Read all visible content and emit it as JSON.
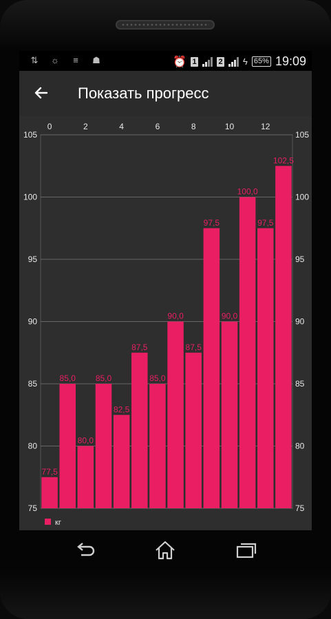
{
  "status_bar": {
    "icons_left": [
      "usb-icon",
      "bulb-icon",
      "cell-data-icon",
      "android-icon"
    ],
    "alarm_icon": "alarm-clock-icon",
    "sim1_label": "1",
    "sim2_label": "2",
    "battery_label": "65%",
    "time": "19:09"
  },
  "app_bar": {
    "back_icon": "arrow-left-icon",
    "title": "Показать прогресс"
  },
  "chart_data": {
    "type": "bar",
    "categories": [
      "0",
      "1",
      "2",
      "3",
      "4",
      "5",
      "6",
      "7",
      "8",
      "9",
      "10",
      "11",
      "12",
      "13"
    ],
    "x_ticks": [
      "0",
      "2",
      "4",
      "6",
      "8",
      "10",
      "12"
    ],
    "values": [
      77.5,
      85.0,
      80.0,
      85.0,
      82.5,
      87.5,
      85.0,
      90.0,
      87.5,
      97.5,
      90.0,
      100.0,
      97.5,
      102.5
    ],
    "value_labels": [
      "77,5",
      "85,0",
      "80,0",
      "85,0",
      "82,5",
      "87,5",
      "85,0",
      "90,0",
      "87,5",
      "97,5",
      "90,0",
      "100,0",
      "97,5",
      "102,5"
    ],
    "y_ticks": [
      "75",
      "80",
      "85",
      "90",
      "95",
      "100",
      "105"
    ],
    "ylim": [
      75,
      105
    ],
    "grid": true,
    "legend": "bottom-left",
    "series": [
      {
        "name": "кг",
        "color": "#e91e63"
      }
    ]
  },
  "nav_bar": {
    "back_icon": "nav-back-icon",
    "home_icon": "nav-home-icon",
    "recents_icon": "nav-recents-icon"
  }
}
